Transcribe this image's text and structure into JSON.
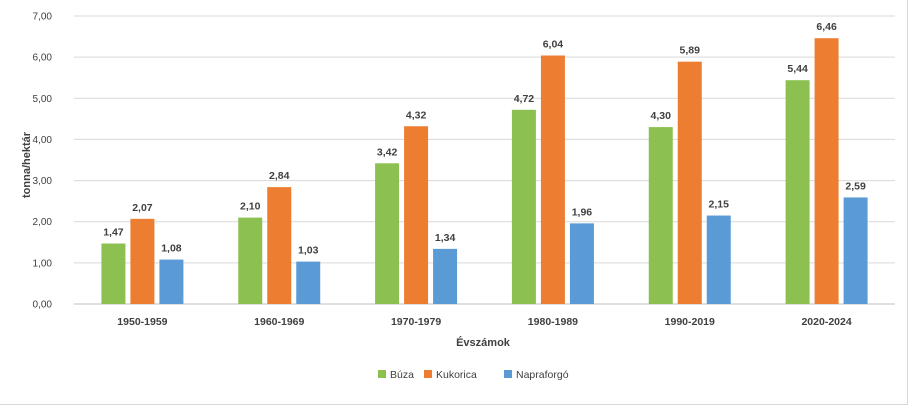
{
  "chart_data": {
    "type": "bar",
    "title": "",
    "xlabel": "Évszámok",
    "ylabel": "tonna/hektár",
    "ylim": [
      0,
      7
    ],
    "yticks": [
      "0,00",
      "1,00",
      "2,00",
      "3,00",
      "4,00",
      "5,00",
      "6,00",
      "7,00"
    ],
    "grid": true,
    "legend_position": "bottom",
    "categories": [
      "1950-1959",
      "1960-1969",
      "1970-1979",
      "1980-1989",
      "1990-2019",
      "2020-2024"
    ],
    "series": [
      {
        "name": "Búza",
        "color": "#8cc152",
        "values": [
          1.47,
          2.1,
          3.42,
          4.72,
          4.3,
          5.44
        ],
        "labels": [
          "1,47",
          "2,10",
          "3,42",
          "4,72",
          "4,30",
          "5,44"
        ]
      },
      {
        "name": "Kukorica",
        "color": "#ed7d31",
        "values": [
          2.07,
          2.84,
          4.32,
          6.04,
          5.89,
          6.46
        ],
        "labels": [
          "2,07",
          "2,84",
          "4,32",
          "6,04",
          "5,89",
          "6,46"
        ]
      },
      {
        "name": "Napraforgó",
        "color": "#5b9bd5",
        "values": [
          1.08,
          1.03,
          1.34,
          1.96,
          2.15,
          2.59
        ],
        "labels": [
          "1,08",
          "1,03",
          "1,34",
          "1,96",
          "2,15",
          "2,59"
        ]
      }
    ]
  }
}
